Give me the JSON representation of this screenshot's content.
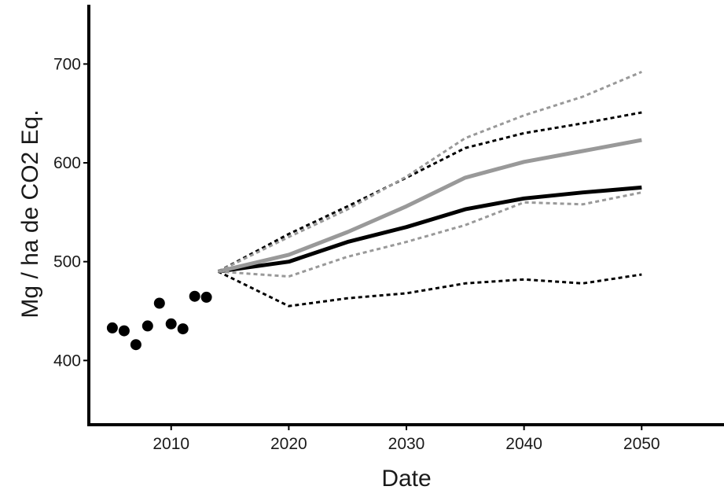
{
  "chart_data": {
    "type": "line",
    "title": "",
    "xlabel": "Date",
    "ylabel": "Mg / ha de CO2 Eq.",
    "xlim": [
      2003,
      2057
    ],
    "ylim": [
      335,
      760
    ],
    "x_ticks": [
      2010,
      2020,
      2030,
      2040,
      2050
    ],
    "y_ticks": [
      400,
      500,
      600,
      700
    ],
    "grid": false,
    "legend": "none",
    "observed_points": {
      "x": [
        2005,
        2006,
        2007,
        2008,
        2009,
        2010,
        2011,
        2012,
        2013
      ],
      "y": [
        433,
        430,
        416,
        435,
        458,
        437,
        432,
        465,
        464
      ]
    },
    "series": [
      {
        "color": "#000000",
        "style": "solid",
        "x": [
          2014,
          2020,
          2025,
          2030,
          2035,
          2040,
          2045,
          2050
        ],
        "y": [
          490,
          500,
          520,
          535,
          553,
          564,
          570,
          575
        ]
      },
      {
        "color": "#999999",
        "style": "solid",
        "x": [
          2014,
          2020,
          2025,
          2030,
          2035,
          2040,
          2045,
          2050
        ],
        "y": [
          490,
          507,
          530,
          556,
          585,
          601,
          612,
          623
        ]
      },
      {
        "color": "#000000",
        "style": "dotted",
        "x": [
          2014,
          2020,
          2025,
          2030,
          2035,
          2040,
          2045,
          2050
        ],
        "y": [
          490,
          528,
          556,
          585,
          615,
          630,
          640,
          651
        ]
      },
      {
        "color": "#000000",
        "style": "dotted",
        "x": [
          2014,
          2020,
          2025,
          2030,
          2035,
          2040,
          2045,
          2050
        ],
        "y": [
          490,
          455,
          463,
          468,
          478,
          482,
          478,
          487
        ]
      },
      {
        "color": "#999999",
        "style": "dotted",
        "x": [
          2014,
          2020,
          2025,
          2030,
          2035,
          2040,
          2045,
          2050
        ],
        "y": [
          490,
          525,
          553,
          586,
          625,
          648,
          667,
          692
        ]
      },
      {
        "color": "#999999",
        "style": "dotted",
        "x": [
          2014,
          2020,
          2025,
          2030,
          2035,
          2040,
          2045,
          2050
        ],
        "y": [
          490,
          485,
          505,
          520,
          537,
          560,
          558,
          570
        ]
      }
    ]
  }
}
